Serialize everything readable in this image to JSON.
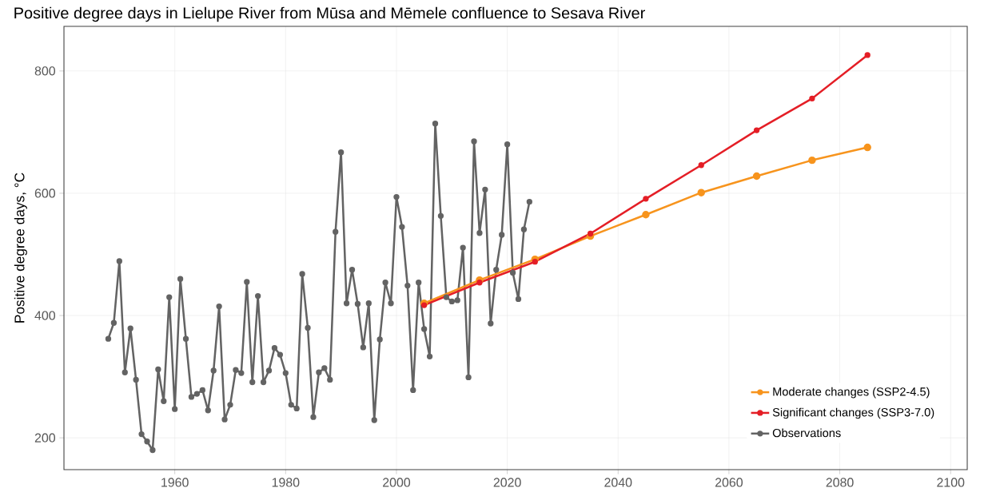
{
  "chart_data": {
    "type": "line",
    "title": "Positive degree days in Lielupe River from Mūsa and Mēmele confluence to Sesava River",
    "ylabel": "Positive degree days, °C",
    "xlim": [
      1940,
      2103
    ],
    "ylim": [
      148,
      873
    ],
    "xticks": [
      1960,
      1980,
      2000,
      2020,
      2040,
      2060,
      2080,
      2100
    ],
    "yticks": [
      200,
      400,
      600,
      800
    ],
    "grid": true,
    "legend": "bottom right",
    "marker": "circle",
    "line_style": "solid",
    "series": [
      {
        "name": "Moderate changes (SSP2-4.5)",
        "color": "#f7941d",
        "x": [
          2005,
          2015,
          2025,
          2035,
          2045,
          2055,
          2065,
          2075,
          2085
        ],
        "values": [
          420,
          458,
          492,
          530,
          565,
          601,
          628,
          654,
          675
        ]
      },
      {
        "name": "Significant changes (SSP3-7.0)",
        "color": "#e41e26",
        "x": [
          2005,
          2015,
          2025,
          2035,
          2045,
          2055,
          2065,
          2075,
          2085
        ],
        "values": [
          417,
          454,
          488,
          534,
          591,
          646,
          703,
          755,
          826
        ]
      },
      {
        "name": "Observations",
        "color": "#636363",
        "x": [
          1948,
          1949,
          1950,
          1951,
          1952,
          1953,
          1954,
          1955,
          1956,
          1957,
          1958,
          1959,
          1960,
          1961,
          1962,
          1963,
          1964,
          1965,
          1966,
          1967,
          1968,
          1969,
          1970,
          1971,
          1972,
          1973,
          1974,
          1975,
          1976,
          1977,
          1978,
          1979,
          1980,
          1981,
          1982,
          1983,
          1984,
          1985,
          1986,
          1987,
          1988,
          1989,
          1990,
          1991,
          1992,
          1993,
          1994,
          1995,
          1996,
          1997,
          1998,
          1999,
          2000,
          2001,
          2002,
          2003,
          2004,
          2005,
          2006,
          2007,
          2008,
          2009,
          2010,
          2011,
          2012,
          2013,
          2014,
          2015,
          2016,
          2017,
          2018,
          2019,
          2020,
          2021,
          2022,
          2023,
          2024
        ],
        "values": [
          362,
          388,
          489,
          307,
          379,
          295,
          206,
          194,
          180,
          312,
          260,
          430,
          247,
          460,
          362,
          267,
          272,
          278,
          245,
          310,
          415,
          230,
          254,
          311,
          306,
          455,
          291,
          432,
          291,
          310,
          347,
          336,
          306,
          254,
          248,
          468,
          380,
          234,
          307,
          314,
          295,
          537,
          667,
          420,
          475,
          419,
          348,
          420,
          229,
          361,
          454,
          420,
          594,
          545,
          449,
          278,
          454,
          378,
          333,
          714,
          563,
          430,
          423,
          425,
          511,
          299,
          685,
          535,
          606,
          387,
          475,
          532,
          680,
          470,
          427,
          541,
          586
        ]
      }
    ]
  }
}
